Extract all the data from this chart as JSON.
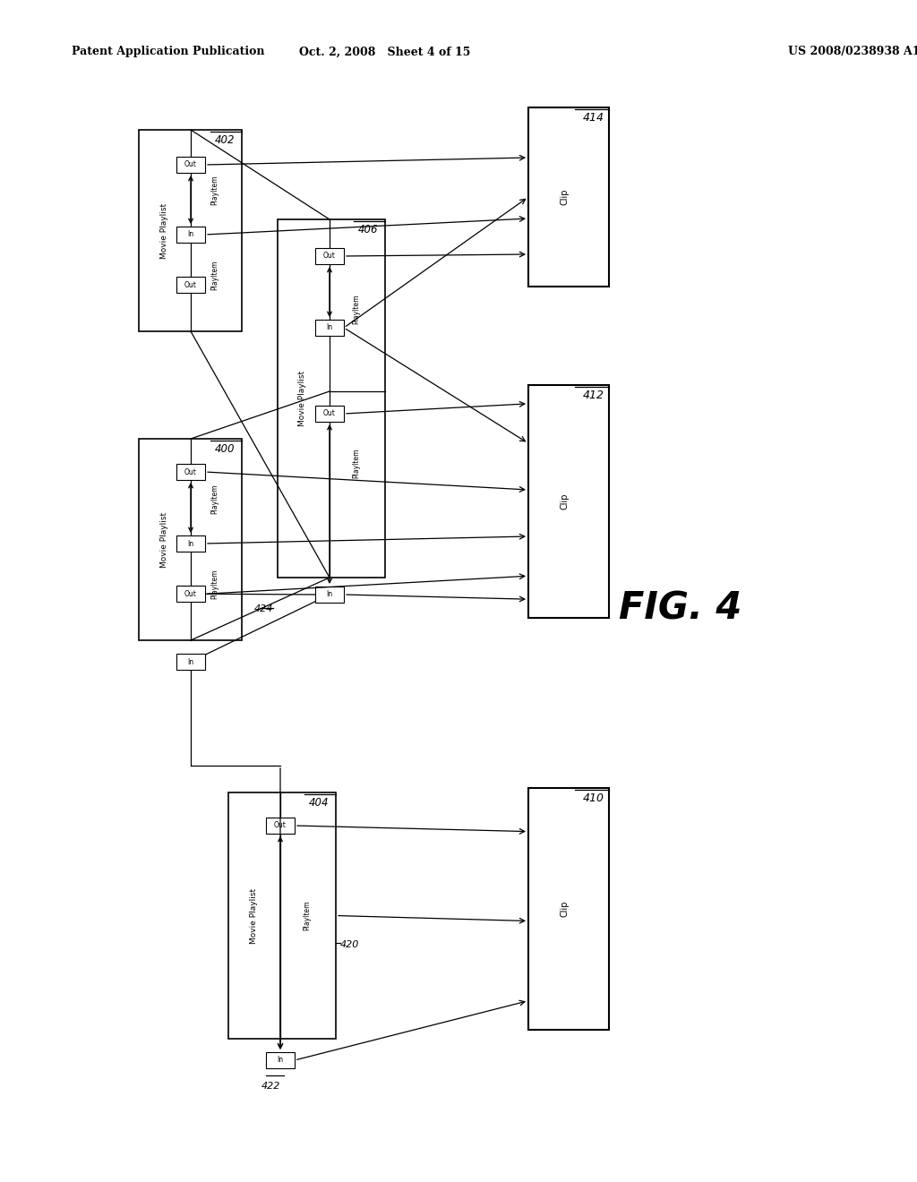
{
  "title_left": "Patent Application Publication",
  "title_center": "Oct. 2, 2008   Sheet 4 of 15",
  "title_right": "US 2008/0238938 A1",
  "fig_label": "FIG. 4",
  "background_color": "#ffffff"
}
